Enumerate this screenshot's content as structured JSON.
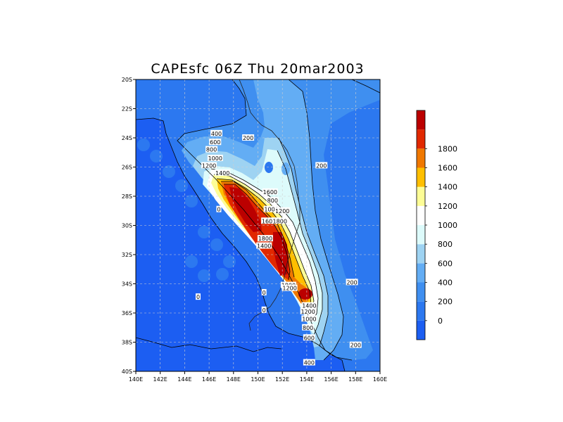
{
  "chart_data": {
    "type": "heatmap",
    "title": "CAPEsfc 06Z Thu 20mar2003",
    "x_ticks": [
      "140E",
      "142E",
      "144E",
      "146E",
      "148E",
      "150E",
      "152E",
      "154E",
      "156E",
      "158E",
      "160E"
    ],
    "y_ticks": [
      "20S",
      "22S",
      "24S",
      "26S",
      "28S",
      "30S",
      "32S",
      "34S",
      "36S",
      "38S",
      "40S"
    ],
    "xlim": [
      140,
      160
    ],
    "ylim": [
      -40,
      -20
    ],
    "grid": true,
    "colorbar": {
      "placement": "right",
      "levels": [
        -200,
        0,
        200,
        400,
        600,
        800,
        1000,
        1200,
        1400,
        1600,
        1800,
        2000
      ],
      "tick_labels": [
        "0",
        "200",
        "400",
        "600",
        "800",
        "1000",
        "1200",
        "1400",
        "1600",
        "1800"
      ],
      "colors": [
        "#1c5ef2",
        "#2c78f0",
        "#3f8ff0",
        "#63adf4",
        "#9ed3f2",
        "#ddfbfb",
        "#ffffff",
        "#fdfd96",
        "#ffbf00",
        "#f07800",
        "#e12800",
        "#bb0000"
      ]
    },
    "contour_labels": [
      {
        "text": "400",
        "lon": 146.6,
        "lat": -23.7
      },
      {
        "text": "600",
        "lon": 146.5,
        "lat": -24.3
      },
      {
        "text": "800",
        "lon": 146.2,
        "lat": -24.8
      },
      {
        "text": "200",
        "lon": 149.2,
        "lat": -24.0
      },
      {
        "text": "1000",
        "lon": 146.5,
        "lat": -25.4
      },
      {
        "text": "1200",
        "lon": 146.0,
        "lat": -25.9
      },
      {
        "text": "1400",
        "lon": 147.1,
        "lat": -26.4
      },
      {
        "text": "200",
        "lon": 155.2,
        "lat": -25.9
      },
      {
        "text": "1600",
        "lon": 151.0,
        "lat": -27.7
      },
      {
        "text": "0",
        "lon": 146.8,
        "lat": -28.9
      },
      {
        "text": "800",
        "lon": 151.2,
        "lat": -28.3
      },
      {
        "text": "1000",
        "lon": 151.1,
        "lat": -28.9
      },
      {
        "text": "1200",
        "lon": 152.0,
        "lat": -29.0
      },
      {
        "text": "1600",
        "lon": 150.9,
        "lat": -29.7
      },
      {
        "text": "1800",
        "lon": 151.8,
        "lat": -29.7
      },
      {
        "text": "1800",
        "lon": 150.6,
        "lat": -30.9
      },
      {
        "text": "1400",
        "lon": 150.5,
        "lat": -31.4
      },
      {
        "text": "200",
        "lon": 157.7,
        "lat": -33.9
      },
      {
        "text": "1800",
        "lon": 152.5,
        "lat": -34.1
      },
      {
        "text": "1200",
        "lon": 152.6,
        "lat": -34.3
      },
      {
        "text": "0",
        "lon": 150.5,
        "lat": -34.6
      },
      {
        "text": "0",
        "lon": 145.1,
        "lat": -34.9
      },
      {
        "text": "1400",
        "lon": 154.2,
        "lat": -35.5
      },
      {
        "text": "0",
        "lon": 150.5,
        "lat": -35.8
      },
      {
        "text": "1200",
        "lon": 154.1,
        "lat": -35.9
      },
      {
        "text": "1000",
        "lon": 154.2,
        "lat": -36.4
      },
      {
        "text": "800",
        "lon": 154.1,
        "lat": -37.0
      },
      {
        "text": "600",
        "lon": 154.2,
        "lat": -37.7
      },
      {
        "text": "200",
        "lon": 158.0,
        "lat": -38.2
      },
      {
        "text": "400",
        "lon": 154.2,
        "lat": -39.4
      }
    ]
  }
}
